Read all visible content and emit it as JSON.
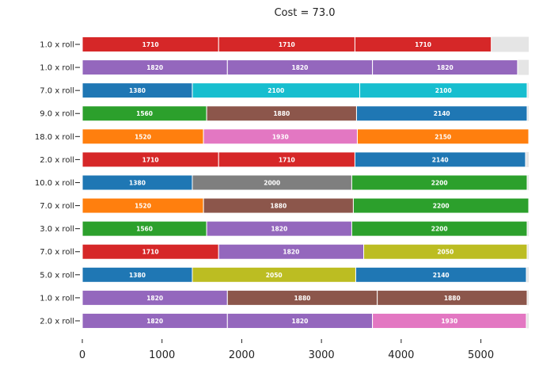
{
  "chart_data": {
    "type": "bar",
    "orientation": "horizontal-stacked",
    "title": "Cost = 73.0",
    "xlabel": "",
    "ylabel": "",
    "xlim": [
      0,
      5600
    ],
    "xticks": [
      0,
      1000,
      2000,
      3000,
      4000,
      5000
    ],
    "grid": false,
    "roll_length": 5600,
    "waste_color": "#e5e5e5",
    "rows": [
      {
        "label": "1.0 x roll",
        "segments": [
          1710,
          1710,
          1710
        ],
        "colors": [
          "#d62728",
          "#d62728",
          "#d62728"
        ]
      },
      {
        "label": "1.0 x roll",
        "segments": [
          1820,
          1820,
          1820
        ],
        "colors": [
          "#9467bd",
          "#9467bd",
          "#9467bd"
        ]
      },
      {
        "label": "7.0 x roll",
        "segments": [
          1380,
          2100,
          2100
        ],
        "colors": [
          "#1f77b4",
          "#17becf",
          "#17becf"
        ]
      },
      {
        "label": "9.0 x roll",
        "segments": [
          1560,
          1880,
          2140
        ],
        "colors": [
          "#2ca02c",
          "#8c564b",
          "#1f77b4"
        ]
      },
      {
        "label": "18.0 x roll",
        "segments": [
          1520,
          1930,
          2150
        ],
        "colors": [
          "#ff7f0e",
          "#e377c2",
          "#ff7f0e"
        ]
      },
      {
        "label": "2.0 x roll",
        "segments": [
          1710,
          1710,
          2140
        ],
        "colors": [
          "#d62728",
          "#d62728",
          "#1f77b4"
        ]
      },
      {
        "label": "10.0 x roll",
        "segments": [
          1380,
          2000,
          2200
        ],
        "colors": [
          "#1f77b4",
          "#7f7f7f",
          "#2ca02c"
        ]
      },
      {
        "label": "7.0 x roll",
        "segments": [
          1520,
          1880,
          2200
        ],
        "colors": [
          "#ff7f0e",
          "#8c564b",
          "#2ca02c"
        ]
      },
      {
        "label": "3.0 x roll",
        "segments": [
          1560,
          1820,
          2200
        ],
        "colors": [
          "#2ca02c",
          "#9467bd",
          "#2ca02c"
        ]
      },
      {
        "label": "7.0 x roll",
        "segments": [
          1710,
          1820,
          2050
        ],
        "colors": [
          "#d62728",
          "#9467bd",
          "#bcbd22"
        ]
      },
      {
        "label": "5.0 x roll",
        "segments": [
          1380,
          2050,
          2140
        ],
        "colors": [
          "#1f77b4",
          "#bcbd22",
          "#1f77b4"
        ]
      },
      {
        "label": "1.0 x roll",
        "segments": [
          1820,
          1880,
          1880
        ],
        "colors": [
          "#9467bd",
          "#8c564b",
          "#8c564b"
        ]
      },
      {
        "label": "2.0 x roll",
        "segments": [
          1820,
          1820,
          1930
        ],
        "colors": [
          "#9467bd",
          "#9467bd",
          "#e377c2"
        ]
      }
    ]
  }
}
